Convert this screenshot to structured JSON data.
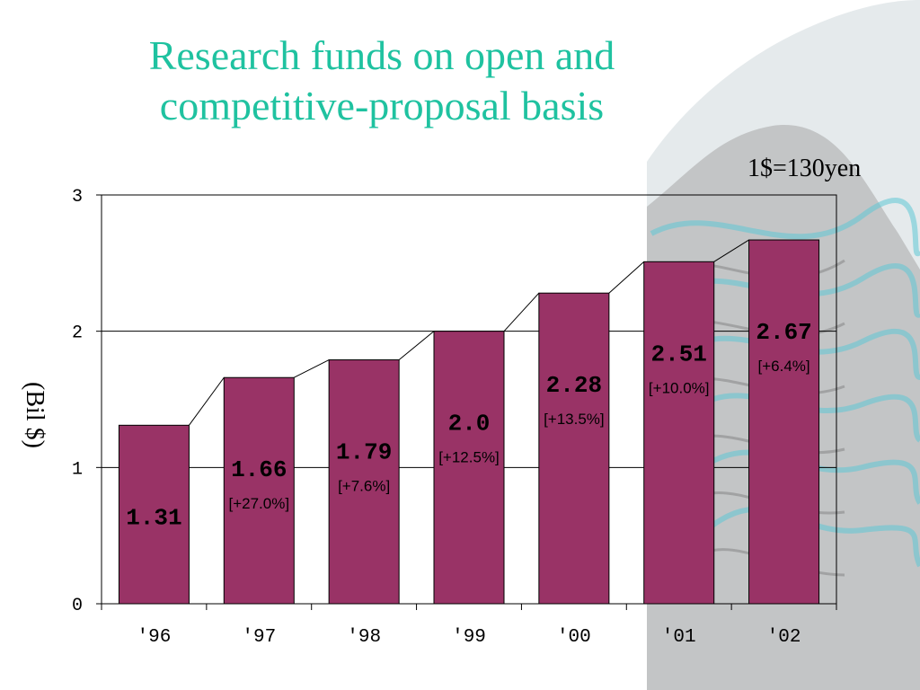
{
  "colors": {
    "bar": "#993366",
    "title": "#1fc2a0",
    "wave_dark": "#9a9a9a",
    "wave_light": "#cfd9dc",
    "wave_cyan": "#5ec6d6"
  },
  "chart_data": {
    "type": "bar",
    "title": "Research funds on open and competitive-proposal basis",
    "title_lines": [
      "Research funds on open and",
      "competitive-proposal basis"
    ],
    "note": "1$=130yen",
    "ylabel": "(Bil $)",
    "xlabel": "",
    "ylim": [
      0,
      3
    ],
    "yticks": [
      "0",
      "1",
      "2",
      "3"
    ],
    "categories": [
      "'96",
      "'97",
      "'98",
      "'99",
      "'00",
      "'01",
      "'02"
    ],
    "values": [
      1.31,
      1.66,
      1.79,
      2.0,
      2.28,
      2.51,
      2.67
    ],
    "value_labels": [
      "1.31",
      "1.66",
      "1.79",
      "2.0",
      "2.28",
      "2.51",
      "2.67"
    ],
    "growth_labels": [
      "",
      "[+27.0%]",
      "[+7.6%]",
      "[+12.5%]",
      "[+13.5%]",
      "[+10.0%]",
      "[+6.4%]"
    ],
    "grid": true,
    "connector_lines": true
  }
}
